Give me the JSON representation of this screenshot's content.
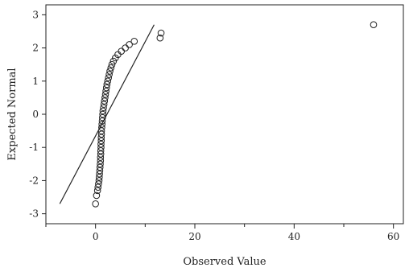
{
  "chart_data": {
    "type": "scatter",
    "title": "",
    "xlabel": "Observed Value",
    "ylabel": "Expected Normal",
    "xlim": [
      -10,
      62
    ],
    "ylim": [
      -3.3,
      3.3
    ],
    "xticks": [
      0,
      20,
      40,
      60
    ],
    "yticks": [
      -3,
      -2,
      -1,
      0,
      1,
      2,
      3
    ],
    "grid": false,
    "legend": "none",
    "marker": "open-circle",
    "colors": {
      "marker": "#222222",
      "line": "#222222",
      "axis": "#222222"
    },
    "reference_line": {
      "x": [
        -7.2,
        11.8
      ],
      "y": [
        -2.7,
        2.7
      ]
    },
    "points": [
      {
        "x": 0.0,
        "y": -2.7
      },
      {
        "x": 0.2,
        "y": -2.45
      },
      {
        "x": 0.4,
        "y": -2.3
      },
      {
        "x": 0.5,
        "y": -2.2
      },
      {
        "x": 0.6,
        "y": -2.1
      },
      {
        "x": 0.7,
        "y": -2.0
      },
      {
        "x": 0.75,
        "y": -1.9
      },
      {
        "x": 0.8,
        "y": -1.8
      },
      {
        "x": 0.85,
        "y": -1.7
      },
      {
        "x": 0.9,
        "y": -1.6
      },
      {
        "x": 0.95,
        "y": -1.5
      },
      {
        "x": 1.0,
        "y": -1.4
      },
      {
        "x": 1.0,
        "y": -1.3
      },
      {
        "x": 1.05,
        "y": -1.2
      },
      {
        "x": 1.05,
        "y": -1.1
      },
      {
        "x": 1.1,
        "y": -1.0
      },
      {
        "x": 1.1,
        "y": -0.9
      },
      {
        "x": 1.15,
        "y": -0.8
      },
      {
        "x": 1.15,
        "y": -0.7
      },
      {
        "x": 1.2,
        "y": -0.6
      },
      {
        "x": 1.2,
        "y": -0.5
      },
      {
        "x": 1.25,
        "y": -0.4
      },
      {
        "x": 1.3,
        "y": -0.3
      },
      {
        "x": 1.35,
        "y": -0.2
      },
      {
        "x": 1.4,
        "y": -0.1
      },
      {
        "x": 1.45,
        "y": 0.0
      },
      {
        "x": 1.5,
        "y": 0.1
      },
      {
        "x": 1.6,
        "y": 0.2
      },
      {
        "x": 1.7,
        "y": 0.3
      },
      {
        "x": 1.8,
        "y": 0.4
      },
      {
        "x": 1.9,
        "y": 0.5
      },
      {
        "x": 2.0,
        "y": 0.6
      },
      {
        "x": 2.1,
        "y": 0.7
      },
      {
        "x": 2.2,
        "y": 0.8
      },
      {
        "x": 2.3,
        "y": 0.9
      },
      {
        "x": 2.45,
        "y": 1.0
      },
      {
        "x": 2.6,
        "y": 1.1
      },
      {
        "x": 2.75,
        "y": 1.2
      },
      {
        "x": 2.9,
        "y": 1.3
      },
      {
        "x": 3.1,
        "y": 1.4
      },
      {
        "x": 3.3,
        "y": 1.5
      },
      {
        "x": 3.6,
        "y": 1.6
      },
      {
        "x": 4.0,
        "y": 1.7
      },
      {
        "x": 4.5,
        "y": 1.8
      },
      {
        "x": 5.2,
        "y": 1.9
      },
      {
        "x": 6.0,
        "y": 2.0
      },
      {
        "x": 6.8,
        "y": 2.1
      },
      {
        "x": 7.8,
        "y": 2.2
      },
      {
        "x": 13.0,
        "y": 2.3
      },
      {
        "x": 13.2,
        "y": 2.45
      },
      {
        "x": 56.0,
        "y": 2.7
      }
    ]
  }
}
